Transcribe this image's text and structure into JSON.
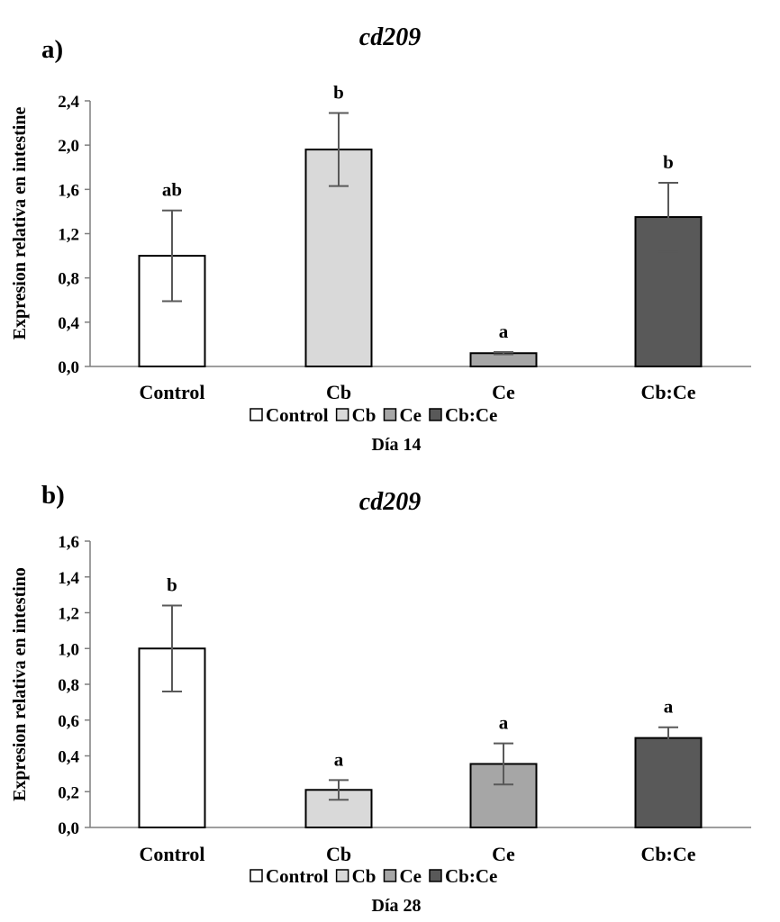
{
  "chart_data": [
    {
      "type": "bar",
      "panel_label": "a)",
      "title": "cd209",
      "ylabel": "Expresion relativa en intestine",
      "xlabel": "Día 14",
      "categories": [
        "Control",
        "Cb",
        "Ce",
        "Cb:Ce"
      ],
      "values": [
        1.0,
        1.96,
        0.12,
        1.35
      ],
      "error": [
        0.41,
        0.33,
        0.01,
        0.31
      ],
      "significance": [
        "ab",
        "b",
        "a",
        "b"
      ],
      "yticks": [
        "0,0",
        "0,4",
        "0,8",
        "1,2",
        "1,6",
        "2,0",
        "2,4"
      ],
      "ylim": [
        0,
        2.4
      ],
      "legend": [
        "Control",
        "Cb",
        "Ce",
        "Cb:Ce"
      ],
      "colors": [
        "#ffffff",
        "#d9d9d9",
        "#a6a6a6",
        "#595959"
      ]
    },
    {
      "type": "bar",
      "panel_label": "b)",
      "title": "cd209",
      "ylabel": "Expresion relativa en intestino",
      "xlabel": "Día 28",
      "categories": [
        "Control",
        "Cb",
        "Ce",
        "Cb:Ce"
      ],
      "values": [
        1.0,
        0.21,
        0.355,
        0.5
      ],
      "error": [
        0.24,
        0.055,
        0.115,
        0.06
      ],
      "significance": [
        "b",
        "a",
        "a",
        "a"
      ],
      "yticks": [
        "0,0",
        "0,2",
        "0,4",
        "0,6",
        "0,8",
        "1,0",
        "1,2",
        "1,4",
        "1,6"
      ],
      "ylim": [
        0,
        1.6
      ],
      "legend": [
        "Control",
        "Cb",
        "Ce",
        "Cb:Ce"
      ],
      "colors": [
        "#ffffff",
        "#d9d9d9",
        "#a6a6a6",
        "#595959"
      ]
    }
  ]
}
